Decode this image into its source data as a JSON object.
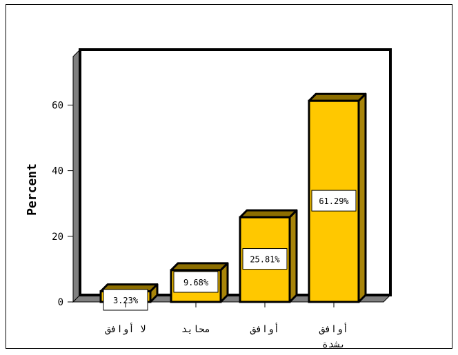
{
  "chart_data": {
    "type": "bar",
    "title": "",
    "xlabel": "",
    "ylabel": "Percent",
    "ylim": [
      0,
      70
    ],
    "yticks": [
      0,
      20,
      40,
      60
    ],
    "categories": [
      "لا أوافق",
      "محايد",
      "أوافق",
      "أوافق بشدة"
    ],
    "category_lines": [
      [
        "لا أوافق"
      ],
      [
        "محايد"
      ],
      [
        "أوافق"
      ],
      [
        "أوافق",
        "بشدة"
      ]
    ],
    "values": [
      3.23,
      9.68,
      25.81,
      61.29
    ],
    "data_labels": [
      "3.23%",
      "9.68%",
      "25.81%",
      "61.29%"
    ],
    "grid": false,
    "style": "3d",
    "colors": {
      "bar_front": "#FFC800",
      "bar_top": "#8C6E00",
      "bar_side": "#A8850A",
      "wall_side": "#808080",
      "floor": "#808080",
      "stroke": "#000000"
    }
  }
}
